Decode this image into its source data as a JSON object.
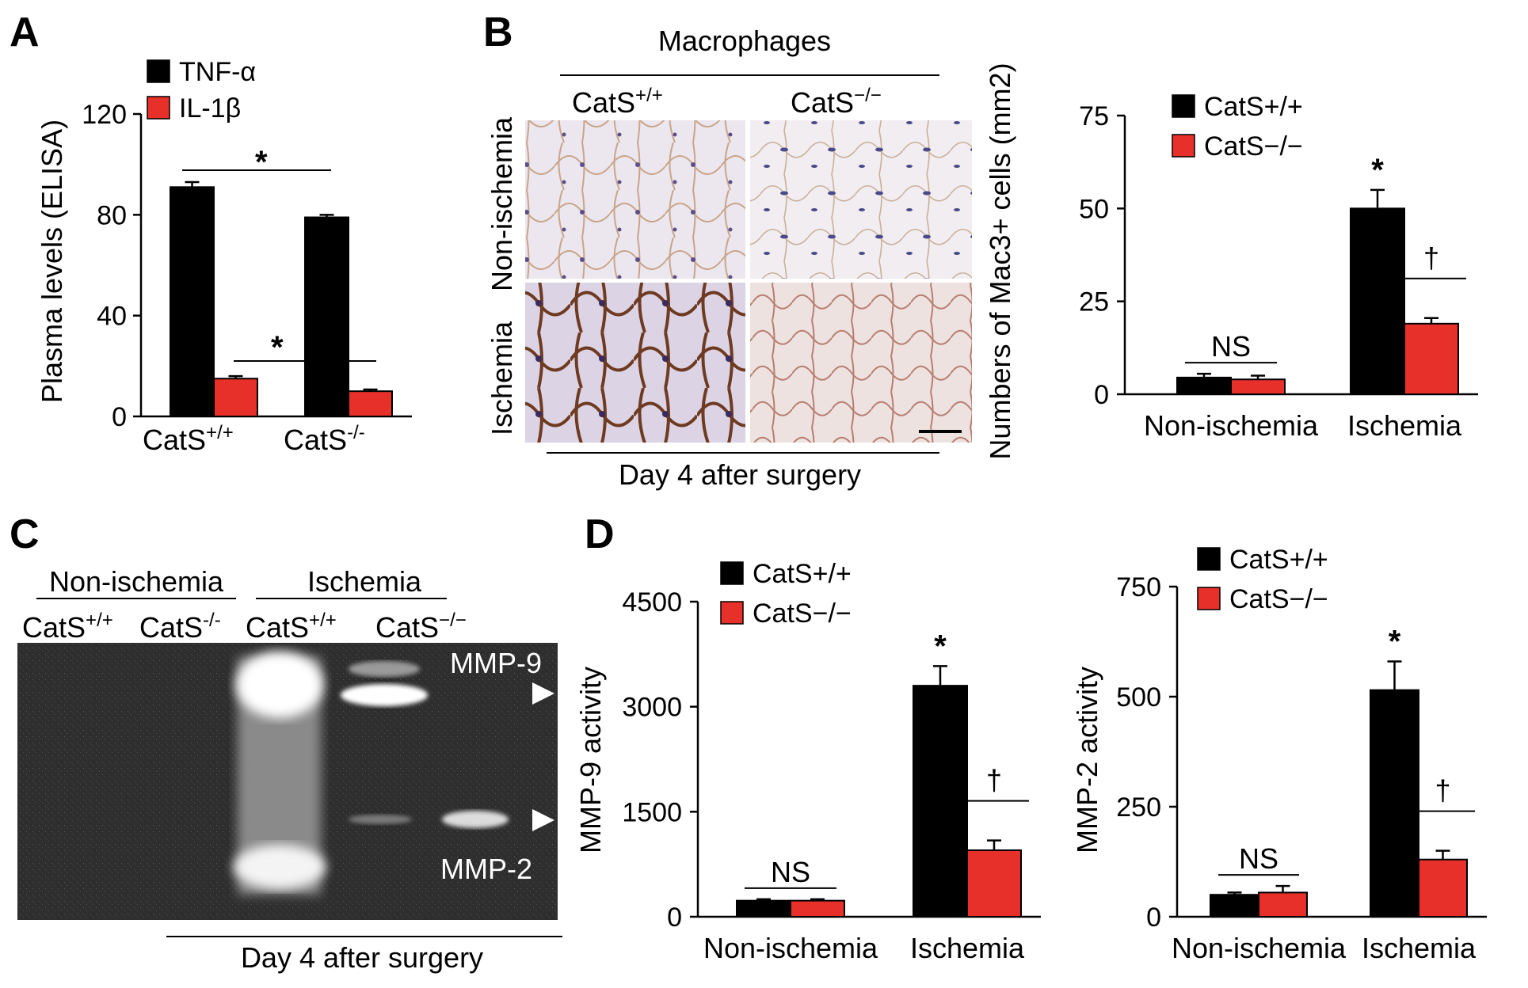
{
  "panels": {
    "A": {
      "letter": "A"
    },
    "B": {
      "letter": "B",
      "header": "Macrophages",
      "col1": "CatS",
      "col1_sup": "+/+",
      "col2": "CatS",
      "col2_sup": "−/−",
      "row1": "Non-ischemia",
      "row2": "Ischemia",
      "footer": "Day 4 after surgery"
    },
    "C": {
      "letter": "C",
      "group1": "Non-ischemia",
      "group2": "Ischemia",
      "lane1": "CatS",
      "lane1_sup": "+/+",
      "lane2": "CatS",
      "lane2_sup": "-/-",
      "lane3": "CatS",
      "lane3_sup": "+/+",
      "lane4": "CatS",
      "lane4_sup": "−/−",
      "band_top": "MMP-9",
      "band_bottom": "MMP-2",
      "footer": "Day 4 after surgery"
    },
    "D": {
      "letter": "D"
    }
  },
  "colors": {
    "cats_wt": "#000000",
    "cats_ko": "#e8302a"
  },
  "chart_data": [
    {
      "id": "A",
      "type": "bar",
      "categories": [
        "CatS+/+",
        "CatS-/-"
      ],
      "series": [
        {
          "name": "TNF-α",
          "values": [
            91,
            79
          ],
          "errors": [
            2,
            1
          ]
        },
        {
          "name": "IL-1β",
          "values": [
            15,
            10
          ],
          "errors": [
            1,
            0.7
          ]
        }
      ],
      "ylabel": "Plasma levels (ELISA)",
      "ylim": [
        0,
        120
      ],
      "yticks": [
        "0",
        "40",
        "80",
        "120"
      ],
      "legend": [
        "TNF-α",
        "IL-1β"
      ],
      "legend_position": "top",
      "annotations": [
        "*",
        "*"
      ],
      "xlabels": {
        "a": "CatS",
        "a_sup": "+/+",
        "b": "CatS",
        "b_sup": "-/-"
      }
    },
    {
      "id": "B",
      "type": "bar",
      "categories": [
        "Non-ischemia",
        "Ischemia"
      ],
      "series": [
        {
          "name": "CatS+/+",
          "values": [
            4.5,
            50
          ],
          "errors": [
            1,
            5
          ]
        },
        {
          "name": "CatS−/−",
          "values": [
            4,
            19
          ],
          "errors": [
            1,
            1.5
          ]
        }
      ],
      "ylabel": "Numbers of Mac3+ cells (mm2)",
      "ylim": [
        0,
        75
      ],
      "yticks": [
        "0",
        "25",
        "50",
        "75"
      ],
      "legend": [
        "CatS+/+",
        "CatS−/−"
      ],
      "legend_position": "top-left",
      "annotations": [
        "NS",
        "*",
        "†"
      ]
    },
    {
      "id": "D1",
      "type": "bar",
      "categories": [
        "Non-ischemia",
        "Ischemia"
      ],
      "series": [
        {
          "name": "CatS+/+",
          "values": [
            230,
            3300
          ],
          "errors": [
            20,
            280
          ]
        },
        {
          "name": "CatS−/−",
          "values": [
            230,
            950
          ],
          "errors": [
            20,
            140
          ]
        }
      ],
      "ylabel": "MMP-9 activity",
      "ylim": [
        0,
        4500
      ],
      "yticks": [
        "0",
        "1500",
        "3000",
        "4500"
      ],
      "legend": [
        "CatS+/+",
        "CatS−/−"
      ],
      "legend_position": "top-left",
      "annotations": [
        "NS",
        "*",
        "†"
      ]
    },
    {
      "id": "D2",
      "type": "bar",
      "categories": [
        "Non-ischemia",
        "Ischemia"
      ],
      "series": [
        {
          "name": "CatS+/+",
          "values": [
            50,
            515
          ],
          "errors": [
            5,
            65
          ]
        },
        {
          "name": "CatS−/−",
          "values": [
            55,
            130
          ],
          "errors": [
            15,
            20
          ]
        }
      ],
      "ylabel": "MMP-2 activity",
      "ylim": [
        0,
        750
      ],
      "yticks": [
        "0",
        "250",
        "500",
        "750"
      ],
      "legend": [
        "CatS+/+",
        "CatS−/−"
      ],
      "legend_position": "top-left",
      "annotations": [
        "NS",
        "*",
        "†"
      ]
    }
  ]
}
